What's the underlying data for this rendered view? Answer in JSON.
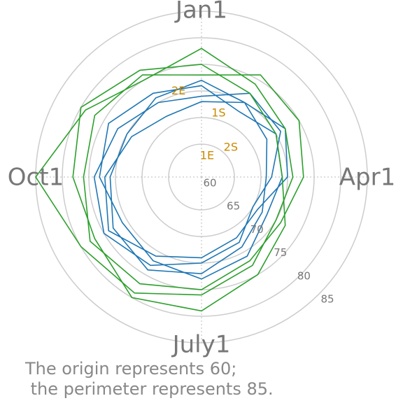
{
  "chart_data": {
    "type": "polar",
    "rlim": [
      60,
      85
    ],
    "rticks": [
      60,
      65,
      70,
      75,
      80,
      85
    ],
    "xlim": [
      0,
      360
    ],
    "xticks": [
      {
        "value": 0,
        "label": "Jan1"
      },
      {
        "value": 90,
        "label": "Apr1"
      },
      {
        "value": 180,
        "label": "July1"
      },
      {
        "value": 270,
        "label": "Oct1"
      }
    ],
    "x": [
      0,
      30,
      60,
      90,
      120,
      150,
      180,
      210,
      240,
      270,
      300,
      330
    ],
    "grid": true,
    "series": [
      {
        "color": "#1f77b4",
        "values": [
          72,
          70,
          68,
          66,
          67,
          69,
          72,
          74,
          73,
          71,
          70,
          71
        ]
      },
      {
        "color": "#1f77b4",
        "values": [
          69,
          72,
          71,
          67,
          65,
          68,
          70,
          73,
          75,
          74,
          72,
          70
        ]
      },
      {
        "color": "#1f77b4",
        "values": [
          71,
          68,
          70,
          69,
          68,
          71,
          73,
          72,
          71,
          73,
          74,
          72
        ]
      },
      {
        "color": "#1f77b4",
        "values": [
          68,
          70,
          72,
          70,
          66,
          67,
          69,
          71,
          74,
          72,
          69,
          67
        ]
      },
      {
        "color": "#2ca02c",
        "values": [
          78,
          74,
          72,
          71,
          70,
          73,
          76,
          79,
          80,
          85,
          79,
          75
        ]
      },
      {
        "color": "#2ca02c",
        "values": [
          73,
          76,
          75,
          73,
          71,
          72,
          75,
          77,
          78,
          76,
          77,
          76
        ]
      },
      {
        "color": "#2ca02c",
        "values": [
          75,
          72,
          70,
          69,
          72,
          75,
          79,
          80,
          77,
          78,
          80,
          77
        ]
      }
    ],
    "annotations": [
      {
        "text": "1S",
        "theta": 15,
        "r": 66.2
      },
      {
        "text": "1E",
        "theta": 15,
        "r": 57.9
      },
      {
        "text": "2S",
        "theta": 45,
        "r": 61.6
      },
      {
        "text": "2E",
        "theta": 345,
        "r": 70.5
      }
    ],
    "annotation_color": "#c88a00",
    "caption": [
      "The origin represents 60;",
      " the perimeter represents 85."
    ]
  }
}
